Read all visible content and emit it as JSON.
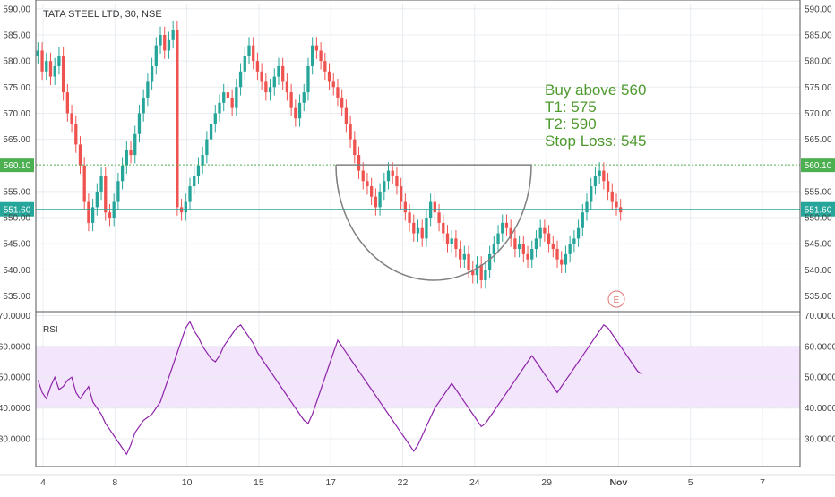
{
  "chart_data": [
    {
      "type": "candlestick",
      "title": "TATA STEEL LTD, 30, NSE",
      "ylim": [
        532,
        591
      ],
      "y_ticks": [
        "590.00",
        "585.00",
        "580.00",
        "575.00",
        "570.00",
        "565.00",
        "555.00",
        "550.00",
        "545.00",
        "540.00",
        "535.00"
      ],
      "x_ticks": [
        "4",
        "8",
        "10",
        "15",
        "17",
        "22",
        "24",
        "29",
        "Nov",
        "5",
        "7"
      ],
      "bar_slots": 181,
      "closes": [
        582,
        578,
        580,
        577,
        579,
        581,
        574,
        570,
        568,
        564,
        560,
        553,
        549,
        552,
        555,
        558,
        551,
        550,
        553,
        557,
        560,
        563,
        562,
        566,
        570,
        573,
        576,
        579,
        583,
        585,
        582,
        584,
        586,
        552,
        551,
        553,
        556,
        558,
        560,
        562,
        565,
        568,
        570,
        572,
        574,
        573,
        571,
        575,
        578,
        581,
        583,
        580,
        578,
        576,
        574,
        575,
        577,
        579,
        576,
        574,
        571,
        569,
        572,
        574,
        579,
        583,
        582,
        580,
        578,
        576,
        575,
        573,
        571,
        568,
        565,
        562,
        559,
        557,
        556,
        554,
        552,
        555,
        557,
        559,
        558,
        556,
        553,
        551,
        549,
        547,
        548,
        546,
        550,
        553,
        551,
        549,
        547,
        545,
        546,
        544,
        542,
        543,
        540,
        539,
        541,
        538,
        540,
        543,
        545,
        547,
        549,
        548,
        546,
        544,
        545,
        543,
        542,
        544,
        546,
        548,
        547,
        545,
        544,
        542,
        541,
        543,
        545,
        546,
        548,
        551,
        553,
        556,
        558,
        559,
        557,
        555,
        553,
        552,
        551
      ],
      "closes_offset": 0,
      "levels": [
        {
          "value": 560.1,
          "label": "560.10",
          "color": "#4caf50",
          "style": "dotted"
        },
        {
          "value": 551.6,
          "label": "551.60",
          "color": "#26a69a",
          "style": "solid"
        }
      ],
      "annotation": {
        "lines": [
          "Buy above 560",
          "T1: 575",
          "T2: 590",
          "Stop Loss: 545"
        ]
      },
      "event_marker": "E",
      "up_color": "#26a69a",
      "down_color": "#ef5350"
    },
    {
      "type": "line",
      "title": "RSI",
      "ylim": [
        21,
        71
      ],
      "y_ticks": [
        "70.0000",
        "60.0000",
        "50.0000",
        "40.0000",
        "30.0000"
      ],
      "band": [
        40,
        60
      ],
      "line_color": "#8e24aa",
      "band_color": "#f3e5fb",
      "values": [
        49,
        45,
        43,
        47,
        50,
        46,
        47,
        49,
        50,
        45,
        43,
        45,
        47,
        42,
        40,
        38,
        35,
        33,
        31,
        29,
        27,
        25,
        28,
        32,
        34,
        36,
        37,
        38,
        40,
        42,
        46,
        50,
        54,
        58,
        62,
        66,
        68,
        65,
        63,
        60,
        58,
        56,
        55,
        57,
        60,
        62,
        64,
        66,
        67,
        65,
        63,
        61,
        58,
        56,
        54,
        52,
        50,
        48,
        46,
        44,
        42,
        40,
        38,
        36,
        35,
        38,
        42,
        46,
        50,
        54,
        58,
        62,
        60,
        58,
        56,
        54,
        52,
        50,
        48,
        46,
        44,
        42,
        40,
        38,
        36,
        34,
        32,
        30,
        28,
        26,
        28,
        31,
        34,
        37,
        40,
        42,
        44,
        46,
        48,
        46,
        44,
        42,
        40,
        38,
        36,
        34,
        35,
        37,
        39,
        41,
        43,
        45,
        47,
        49,
        51,
        53,
        55,
        57,
        55,
        53,
        51,
        49,
        47,
        45,
        47,
        49,
        51,
        53,
        55,
        57,
        59,
        61,
        63,
        65,
        67,
        66,
        64,
        62,
        60,
        58,
        56,
        54,
        52,
        51
      ],
      "values_offset": 0
    }
  ],
  "colors": {
    "grid": "#e8ecf1",
    "text": "#444444",
    "annotation": "#4f9a2e",
    "cup": "#808080",
    "event": "#e57373"
  }
}
